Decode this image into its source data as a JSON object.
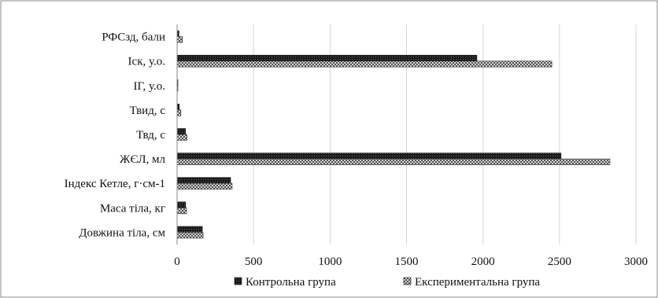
{
  "chart_data": {
    "type": "bar",
    "orientation": "horizontal",
    "title": "",
    "xlabel": "",
    "ylabel": "",
    "xlim": [
      0,
      3000
    ],
    "x_ticks": [
      "0",
      "500",
      "1000",
      "1500",
      "2000",
      "2500",
      "3000"
    ],
    "grid": true,
    "legend_position": "bottom",
    "categories": [
      "РФСзд, бали",
      "Іск, у.о.",
      "ІГ, у.о.",
      "Твид, с",
      "Твд, с",
      "ЖЄЛ, мл",
      "Індекс Кетле, г·см-1",
      "Маса тіла, кг",
      "Довжина тіла, см"
    ],
    "series": [
      {
        "name": "Контрольна група",
        "pattern": "dense-dark",
        "color": "#1a1a1a",
        "values": [
          12,
          1960,
          4,
          14,
          55,
          2510,
          350,
          56,
          165
        ]
      },
      {
        "name": "Експериментальна група",
        "pattern": "crosshatch",
        "color": "#444444",
        "values": [
          35,
          2450,
          4,
          25,
          65,
          2830,
          360,
          62,
          170
        ]
      }
    ]
  }
}
